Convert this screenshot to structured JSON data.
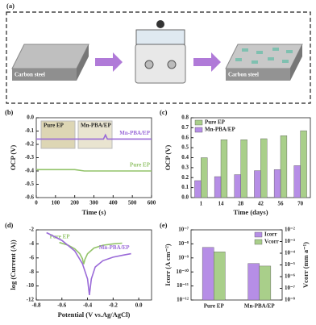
{
  "schematic": {
    "label": "(a)",
    "texts": [
      "Carbon steel",
      "Carbon steel"
    ]
  },
  "chart_data": [
    {
      "type": "line",
      "panel_label": "(b)",
      "x_label": "Time (s)",
      "y_label": "OCP (V)",
      "xlim": [
        0,
        600
      ],
      "xticks": [
        0,
        100,
        200,
        300,
        400,
        500,
        600
      ],
      "ylim": [
        -0.6,
        0
      ],
      "yticks": [
        -0.6,
        -0.5,
        -0.4,
        -0.3,
        -0.2,
        -0.1,
        {
          "value": 0,
          "label": "0.0"
        }
      ],
      "annotations": [
        "Pure EP",
        "Mn-PBA/EP"
      ],
      "series": [
        {
          "name": "Mn-PBA/EP",
          "color": "#9a6ad8",
          "x": [
            0,
            50,
            100,
            150,
            200,
            250,
            300,
            350,
            360,
            370,
            400,
            450,
            500,
            550,
            600
          ],
          "values": [
            -0.16,
            -0.16,
            -0.16,
            -0.16,
            -0.16,
            -0.16,
            -0.16,
            -0.16,
            -0.13,
            -0.16,
            -0.16,
            -0.16,
            -0.16,
            -0.16,
            -0.16
          ]
        },
        {
          "name": "Pure EP",
          "color": "#93c36a",
          "x": [
            0,
            50,
            100,
            150,
            200,
            250,
            300,
            350,
            400,
            450,
            500,
            550,
            600
          ],
          "values": [
            -0.39,
            -0.39,
            -0.39,
            -0.39,
            -0.39,
            -0.4,
            -0.4,
            -0.4,
            -0.4,
            -0.4,
            -0.4,
            -0.4,
            -0.4
          ]
        }
      ]
    },
    {
      "type": "bar",
      "panel_label": "(c)",
      "x_label": "Time (days)",
      "y_label": "OCP (V)",
      "legend": "upper left",
      "categories": [
        "1",
        "14",
        "28",
        "42",
        "56",
        "70"
      ],
      "ylim": [
        0,
        0.8
      ],
      "yticks": [
        {
          "value": 0,
          "label": "0.0"
        },
        0.1,
        0.2,
        0.3,
        0.4,
        0.5,
        0.6,
        0.7,
        0.8
      ],
      "series": [
        {
          "name": "Pure EP",
          "color": "#a9cf8a",
          "values": [
            0.4,
            0.58,
            0.58,
            0.59,
            0.62,
            0.67
          ]
        },
        {
          "name": "Mn-PBA/EP",
          "color": "#b68ee6",
          "values": [
            0.17,
            0.21,
            0.23,
            0.27,
            0.28,
            0.32
          ]
        }
      ]
    },
    {
      "type": "line",
      "panel_label": "(d)",
      "x_label": "Potential (V vs.Ag/AgCl)",
      "y_label": "log (Current (A))",
      "xlim": [
        -0.8,
        0.1
      ],
      "xticks": [
        -0.8,
        -0.6,
        -0.4,
        -0.2,
        {
          "value": 0,
          "label": "0.0"
        }
      ],
      "ylim": [
        -12,
        -2
      ],
      "yticks": [
        -12,
        -10,
        -8,
        -6,
        -4,
        -2
      ],
      "series": [
        {
          "name": "Pure EP",
          "color": "#93c36a",
          "x": [
            -0.62,
            -0.55,
            -0.5,
            -0.46,
            -0.44,
            -0.43,
            -0.42,
            -0.4,
            -0.35,
            -0.28,
            -0.2,
            -0.13
          ],
          "values": [
            -3.8,
            -4.2,
            -4.7,
            -5.4,
            -6.1,
            -6.9,
            -6.2,
            -5.4,
            -4.6,
            -4.2,
            -4,
            -3.9
          ]
        },
        {
          "name": "Mn-PBA/EP",
          "color": "#9a6ad8",
          "x": [
            -0.72,
            -0.6,
            -0.5,
            -0.44,
            -0.4,
            -0.385,
            -0.37,
            -0.34,
            -0.28,
            -0.2,
            -0.12,
            -0.06
          ],
          "values": [
            -2.4,
            -3.5,
            -5,
            -6.8,
            -9,
            -11.3,
            -9,
            -7.3,
            -6.4,
            -5.9,
            -5.6,
            -5.4
          ]
        }
      ]
    },
    {
      "type": "bar",
      "panel_label": "(e)",
      "y_label": "Icorr (A cm⁻²)",
      "y2_label": "Vcorr (mm a⁻¹)",
      "log_scale": true,
      "legend": "upper right",
      "categories": [
        "Pure EP",
        "Mn-PBA/EP"
      ],
      "ylim": [
        1e-12,
        1e-07
      ],
      "yticks": [
        {
          "value": 1e-12,
          "label": "10⁻¹²"
        },
        {
          "value": 1e-11,
          "label": "10⁻¹¹"
        },
        {
          "value": 1e-10,
          "label": "10⁻¹⁰"
        },
        {
          "value": 1e-09,
          "label": "10⁻⁹"
        },
        {
          "value": 1e-08,
          "label": "10⁻⁸"
        },
        {
          "value": 1e-07,
          "label": "10⁻⁷"
        }
      ],
      "y2lim": [
        1e-08,
        0.01
      ],
      "y2ticks": [
        {
          "value": 1e-08,
          "label": "10⁻⁸"
        },
        {
          "value": 1e-07,
          "label": "10⁻⁷"
        },
        {
          "value": 1e-06,
          "label": "10⁻⁶"
        },
        {
          "value": 1e-05,
          "label": "10⁻⁵"
        },
        {
          "value": 0.0001,
          "label": "10⁻⁴"
        },
        {
          "value": 0.001,
          "label": "10⁻³"
        },
        {
          "value": 0.01,
          "label": "10⁻²"
        }
      ],
      "series": [
        {
          "name": "Icorr",
          "color": "#b68ee6",
          "values": [
            5.6e-09,
            4e-10
          ]
        },
        {
          "name": "Vcorr",
          "color": "#a9cf8a",
          "axis": "y2",
          "values": [
            0.00013,
            8e-06
          ]
        }
      ]
    }
  ]
}
